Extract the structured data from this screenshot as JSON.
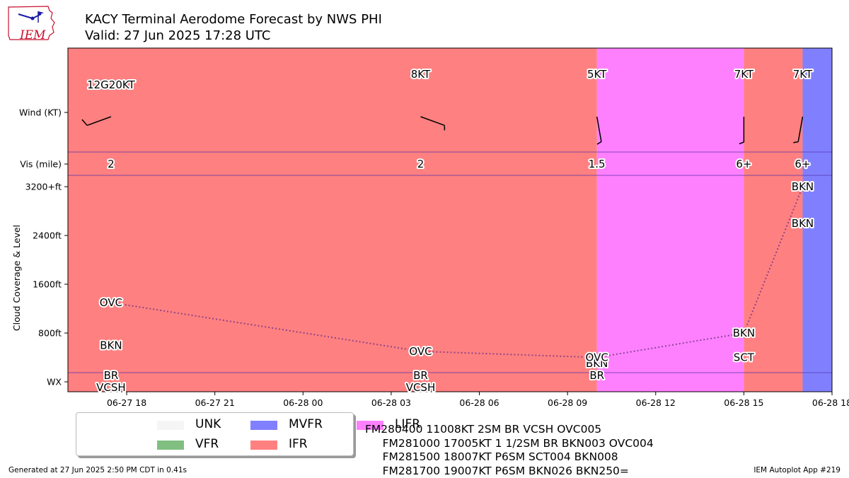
{
  "header": {
    "title": "KACY Terminal Aerodome Forecast by NWS PHI",
    "subtitle": "Valid: 27 Jun 2025 17:28 UTC",
    "logo_text": "IEM"
  },
  "chart_data": {
    "type": "timeline",
    "x_range": [
      "2025-06-27 16:00",
      "2025-06-28 18:00"
    ],
    "x_ticks": [
      {
        "t": "2025-06-27 18:00",
        "label": "06-27 18"
      },
      {
        "t": "2025-06-27 21:00",
        "label": "06-27 21"
      },
      {
        "t": "2025-06-28 00:00",
        "label": "06-28 00"
      },
      {
        "t": "2025-06-28 03:00",
        "label": "06-28 03"
      },
      {
        "t": "2025-06-28 06:00",
        "label": "06-28 06"
      },
      {
        "t": "2025-06-28 09:00",
        "label": "06-28 09"
      },
      {
        "t": "2025-06-28 12:00",
        "label": "06-28 12"
      },
      {
        "t": "2025-06-28 15:00",
        "label": "06-28 15"
      },
      {
        "t": "2025-06-28 18:00",
        "label": "06-28 18"
      }
    ],
    "y_label": "Cloud Coverage & Level",
    "y_ticks": [
      {
        "v": 0,
        "label": "WX"
      },
      {
        "v": 800,
        "label": "800ft"
      },
      {
        "v": 1600,
        "label": "1600ft"
      },
      {
        "v": 2400,
        "label": "2400ft"
      },
      {
        "v": 3200,
        "label": "3200+ft"
      }
    ],
    "row_labels": {
      "wind": "Wind (KT)",
      "vis": "Vis (mile)"
    },
    "category_colors": {
      "UNK": "#f5f5f5",
      "VFR": "#80bf80",
      "MVFR": "#8080ff",
      "IFR": "#ff8080",
      "LIFR": "#ff80ff"
    },
    "periods": [
      {
        "start": "2025-06-27 17:28",
        "end": "2025-06-28 10:00",
        "category": "IFR"
      },
      {
        "start": "2025-06-28 10:00",
        "end": "2025-06-28 15:00",
        "category": "LIFR"
      },
      {
        "start": "2025-06-28 15:00",
        "end": "2025-06-28 17:00",
        "category": "IFR"
      },
      {
        "start": "2025-06-28 17:00",
        "end": "2025-06-28 18:00",
        "category": "MVFR"
      }
    ],
    "forecasts": [
      {
        "t": "2025-06-27 17:28",
        "wind_label": "12G20KT",
        "wind_dir": 250,
        "wind_speed": 12,
        "vis_label": "2",
        "clouds": [
          {
            "cover": "BKN",
            "level": 600
          },
          {
            "cover": "OVC",
            "level": 1300
          }
        ],
        "wx": [
          "BR",
          "VCSH"
        ]
      },
      {
        "t": "2025-06-28 04:00",
        "wind_label": "8KT",
        "wind_dir": 110,
        "wind_speed": 8,
        "vis_label": "2",
        "clouds": [
          {
            "cover": "OVC",
            "level": 500
          }
        ],
        "wx": [
          "BR",
          "VCSH"
        ]
      },
      {
        "t": "2025-06-28 10:00",
        "wind_label": "5KT",
        "wind_dir": 170,
        "wind_speed": 5,
        "vis_label": "1.5",
        "clouds": [
          {
            "cover": "BKN",
            "level": 300
          },
          {
            "cover": "OVC",
            "level": 400
          }
        ],
        "wx": [
          "BR"
        ]
      },
      {
        "t": "2025-06-28 15:00",
        "wind_label": "7KT",
        "wind_dir": 180,
        "wind_speed": 7,
        "vis_label": "6+",
        "clouds": [
          {
            "cover": "SCT",
            "level": 400
          },
          {
            "cover": "BKN",
            "level": 800
          }
        ],
        "wx": []
      },
      {
        "t": "2025-06-28 17:00",
        "wind_label": "7KT",
        "wind_dir": 190,
        "wind_speed": 7,
        "vis_label": "6+",
        "clouds": [
          {
            "cover": "BKN",
            "level": 2600
          },
          {
            "cover": "BKN",
            "level": 3200
          }
        ],
        "wx": []
      }
    ],
    "legend": [
      {
        "label": "UNK",
        "category": "UNK"
      },
      {
        "label": "VFR",
        "category": "VFR"
      },
      {
        "label": "MVFR",
        "category": "MVFR"
      },
      {
        "label": "IFR",
        "category": "IFR"
      },
      {
        "label": "LIFR",
        "category": "LIFR"
      }
    ]
  },
  "taf_text": "FM280400 11008KT 2SM BR VCSH OVC005\n     FM281000 17005KT 1 1/2SM BR BKN003 OVC004\n     FM281500 18007KT P6SM SCT004 BKN008\n     FM281700 19007KT P6SM BKN026 BKN250=",
  "footer": {
    "left": "Generated at 27 Jun 2025 2:50 PM CDT in 0.41s",
    "right": "IEM Autoplot App #219"
  }
}
